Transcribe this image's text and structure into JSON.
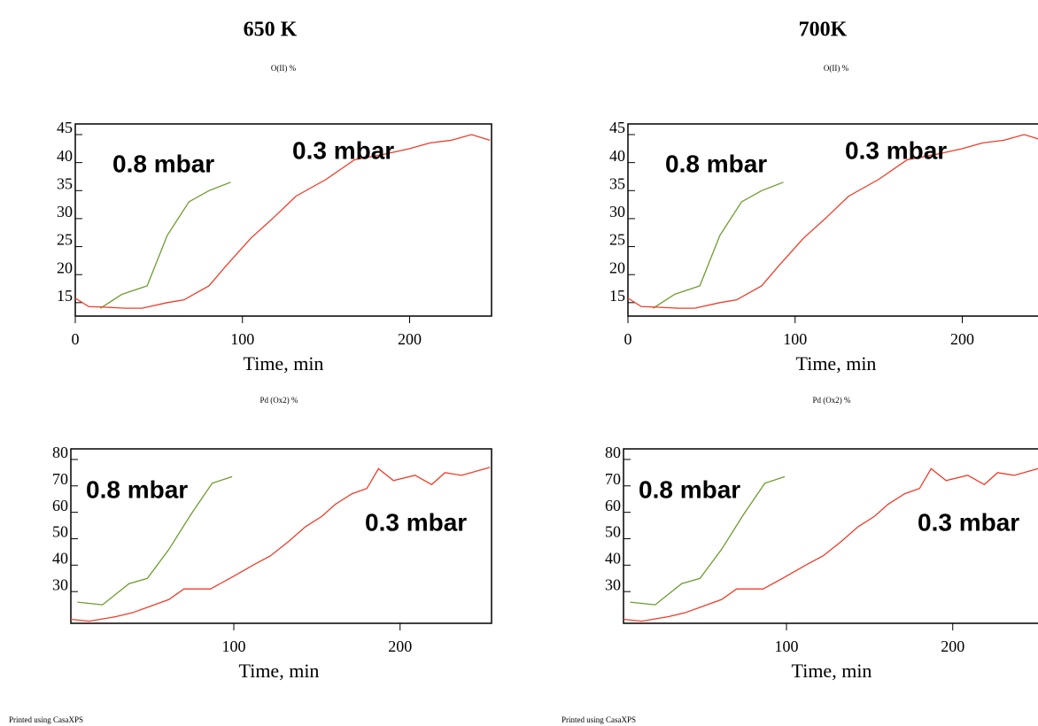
{
  "chart_data": [
    {
      "type": "line",
      "title": "650 K",
      "subtitle": "O(II) %",
      "xlabel": "Time, min",
      "xlim": [
        0,
        249
      ],
      "ylim": [
        12.6,
        46.9
      ],
      "xticks": [
        0,
        100,
        200
      ],
      "yticks": [
        15,
        20,
        25,
        30,
        35,
        40,
        45
      ],
      "series": [
        {
          "name": "0.8 mbar",
          "color": "#6e9b2e",
          "x": [
            15,
            28,
            43,
            55,
            68,
            80,
            93
          ],
          "values": [
            14.0,
            16.5,
            18,
            27,
            33,
            35,
            36.5
          ]
        },
        {
          "name": "0.3 mbar",
          "color": "#f03c28",
          "x": [
            0,
            8,
            17,
            30,
            40,
            55,
            65,
            80,
            90,
            105,
            118,
            132,
            150,
            167,
            185,
            200,
            212,
            225,
            237,
            248
          ],
          "values": [
            15.8,
            14.3,
            14.2,
            14.0,
            14.0,
            15.0,
            15.5,
            18,
            21.5,
            26.5,
            30,
            34,
            37,
            40.5,
            41.5,
            42.5,
            43.5,
            44,
            45,
            44
          ]
        }
      ]
    },
    {
      "type": "line",
      "title": "700K",
      "subtitle": "O(II) %",
      "xlabel": "Time, min",
      "xlim": [
        0,
        249
      ],
      "ylim": [
        12.6,
        46.9
      ],
      "xticks": [
        0,
        100,
        200
      ],
      "yticks": [
        15,
        20,
        25,
        30,
        35,
        40,
        45
      ],
      "series": [
        {
          "name": "0.8 mbar",
          "color": "#6e9b2e",
          "x": [
            15,
            28,
            43,
            55,
            68,
            80,
            93
          ],
          "values": [
            14.0,
            16.5,
            18,
            27,
            33,
            35,
            36.5
          ]
        },
        {
          "name": "0.3 mbar",
          "color": "#f03c28",
          "x": [
            0,
            8,
            17,
            30,
            40,
            55,
            65,
            80,
            90,
            105,
            118,
            132,
            150,
            167,
            185,
            200,
            212,
            225,
            237,
            248
          ],
          "values": [
            15.8,
            14.3,
            14.2,
            14.0,
            14.0,
            15.0,
            15.5,
            18,
            21.5,
            26.5,
            30,
            34,
            37,
            40.5,
            41.5,
            42.5,
            43.5,
            44,
            45,
            44
          ]
        }
      ]
    },
    {
      "type": "line",
      "subtitle": "Pd (Ox2) %",
      "xlabel": "Time, min",
      "xlim": [
        2,
        255
      ],
      "ylim": [
        18,
        84
      ],
      "xticks": [
        100,
        200
      ],
      "yticks": [
        30,
        40,
        50,
        60,
        70,
        80
      ],
      "series": [
        {
          "name": "0.8 mbar",
          "color": "#6e9b2e",
          "x": [
            6,
            21,
            37,
            48,
            61,
            74,
            87,
            99
          ],
          "values": [
            26,
            25,
            33,
            35,
            46,
            59,
            71,
            73.5
          ]
        },
        {
          "name": "0.3 mbar",
          "color": "#f03c28",
          "x": [
            2,
            13,
            29,
            39,
            50,
            61,
            70,
            86,
            99,
            113,
            122,
            133,
            143,
            153,
            161,
            171,
            180,
            187,
            196,
            209,
            219,
            227,
            237,
            254
          ],
          "values": [
            19.5,
            18.8,
            20.5,
            22,
            24.5,
            27,
            31,
            31,
            35.5,
            40.5,
            43.5,
            49,
            54.5,
            58.5,
            63,
            67,
            69,
            76.5,
            72,
            74,
            70.5,
            75,
            74,
            77
          ]
        }
      ]
    },
    {
      "type": "line",
      "subtitle": "Pd (Ox2) %",
      "xlabel": "Time, min",
      "xlim": [
        2,
        255
      ],
      "ylim": [
        18,
        84
      ],
      "xticks": [
        100,
        200
      ],
      "yticks": [
        30,
        40,
        50,
        60,
        70,
        80
      ],
      "series": [
        {
          "name": "0.8 mbar",
          "color": "#6e9b2e",
          "x": [
            6,
            21,
            37,
            48,
            61,
            74,
            87,
            99
          ],
          "values": [
            26,
            25,
            33,
            35,
            46,
            59,
            71,
            73.5
          ]
        },
        {
          "name": "0.3 mbar",
          "color": "#f03c28",
          "x": [
            2,
            13,
            29,
            39,
            50,
            61,
            70,
            86,
            99,
            113,
            122,
            133,
            143,
            153,
            161,
            171,
            180,
            187,
            196,
            209,
            219,
            227,
            237,
            254
          ],
          "values": [
            19.5,
            18.8,
            20.5,
            22,
            24.5,
            27,
            31,
            31,
            35.5,
            40.5,
            43.5,
            49,
            54.5,
            58.5,
            63,
            67,
            69,
            76.5,
            72,
            74,
            70.5,
            75,
            74,
            77
          ]
        }
      ]
    }
  ],
  "footer": [
    "Printed using CasaXPS",
    "Printed using CasaXPS"
  ]
}
